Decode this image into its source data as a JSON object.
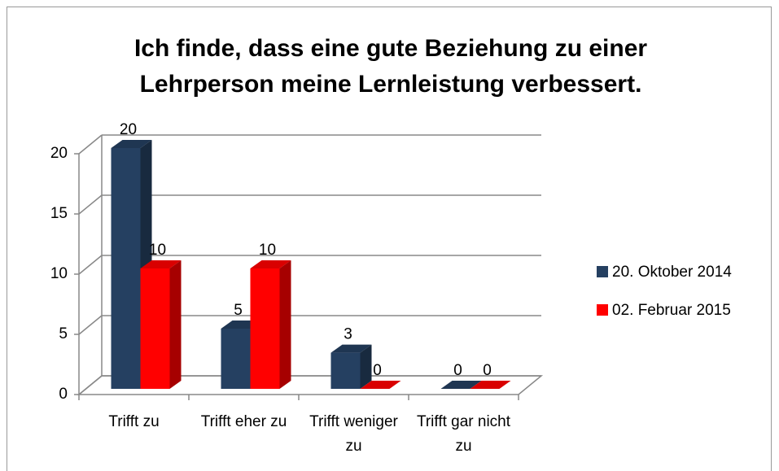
{
  "chart_data": {
    "type": "bar3d",
    "title": "Ich finde, dass eine gute Beziehung zu einer Lehrperson meine Lernleistung verbessert.",
    "categories": [
      "Trifft zu",
      "Trifft eher zu",
      "Trifft weniger zu",
      "Trifft gar nicht zu"
    ],
    "series": [
      {
        "name": "20. Oktober 2014",
        "color": "#254061",
        "values": [
          20,
          5,
          3,
          0
        ]
      },
      {
        "name": "02. Februar 2015",
        "color": "#ff0000",
        "values": [
          10,
          10,
          0,
          0
        ]
      }
    ],
    "ylim": [
      0,
      20
    ],
    "yticks": [
      0,
      5,
      10,
      15,
      20
    ],
    "grid": true,
    "legend": "right"
  }
}
